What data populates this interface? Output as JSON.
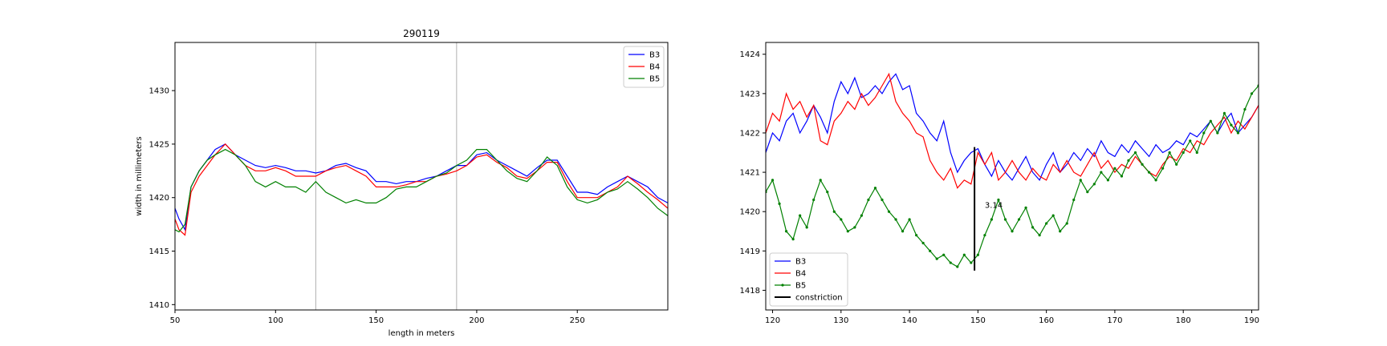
{
  "chart_data": [
    {
      "type": "line",
      "title": "290119",
      "xlabel": "length in meters",
      "ylabel": "width in millimeters",
      "xlim": [
        50,
        295
      ],
      "ylim": [
        1409.5,
        1434.5
      ],
      "xticks": [
        50,
        100,
        150,
        200,
        250
      ],
      "yticks": [
        1410,
        1415,
        1420,
        1425,
        1430
      ],
      "legend": "top-right",
      "vertical_lines": [
        120,
        190
      ],
      "series": [
        {
          "name": "B3",
          "color": "#0000ff",
          "x": [
            50,
            52,
            55,
            58,
            62,
            66,
            70,
            75,
            80,
            85,
            90,
            95,
            100,
            105,
            110,
            115,
            120,
            125,
            130,
            135,
            140,
            145,
            150,
            155,
            160,
            165,
            170,
            175,
            180,
            185,
            190,
            195,
            200,
            205,
            210,
            215,
            220,
            225,
            230,
            235,
            240,
            245,
            250,
            255,
            260,
            265,
            270,
            275,
            280,
            285,
            290,
            295
          ],
          "y": [
            1419.0,
            1418.0,
            1417.0,
            1421.0,
            1422.5,
            1423.5,
            1424.5,
            1425.0,
            1424.0,
            1423.5,
            1423.0,
            1422.8,
            1423.0,
            1422.8,
            1422.5,
            1422.5,
            1422.3,
            1422.5,
            1423.0,
            1423.2,
            1422.8,
            1422.5,
            1421.5,
            1421.5,
            1421.3,
            1421.5,
            1421.5,
            1421.8,
            1422.0,
            1422.5,
            1423.0,
            1423.0,
            1424.0,
            1424.2,
            1423.5,
            1423.0,
            1422.5,
            1422.0,
            1422.8,
            1423.5,
            1423.5,
            1422.0,
            1420.5,
            1420.5,
            1420.3,
            1421.0,
            1421.5,
            1422.0,
            1421.5,
            1421.0,
            1420.0,
            1419.5
          ]
        },
        {
          "name": "B4",
          "color": "#ff0000",
          "x": [
            50,
            52,
            55,
            58,
            62,
            66,
            70,
            75,
            80,
            85,
            90,
            95,
            100,
            105,
            110,
            115,
            120,
            125,
            130,
            135,
            140,
            145,
            150,
            155,
            160,
            165,
            170,
            175,
            180,
            185,
            190,
            195,
            200,
            205,
            210,
            215,
            220,
            225,
            230,
            235,
            240,
            245,
            250,
            255,
            260,
            265,
            270,
            275,
            280,
            285,
            290,
            295
          ],
          "y": [
            1418.0,
            1417.0,
            1416.5,
            1420.5,
            1422.0,
            1423.0,
            1424.0,
            1425.0,
            1424.0,
            1423.0,
            1422.5,
            1422.5,
            1422.8,
            1422.5,
            1422.0,
            1422.0,
            1422.0,
            1422.5,
            1422.8,
            1423.0,
            1422.5,
            1422.0,
            1421.0,
            1421.0,
            1421.0,
            1421.2,
            1421.5,
            1421.5,
            1422.0,
            1422.2,
            1422.5,
            1423.0,
            1423.8,
            1424.0,
            1423.3,
            1422.8,
            1422.0,
            1421.8,
            1422.5,
            1423.3,
            1423.3,
            1421.5,
            1420.0,
            1420.0,
            1420.0,
            1420.5,
            1421.0,
            1422.0,
            1421.3,
            1420.5,
            1419.8,
            1419.0
          ]
        },
        {
          "name": "B5",
          "color": "#008000",
          "x": [
            50,
            52,
            55,
            58,
            62,
            66,
            70,
            75,
            80,
            85,
            90,
            95,
            100,
            105,
            110,
            115,
            120,
            125,
            130,
            135,
            140,
            145,
            150,
            155,
            160,
            165,
            170,
            175,
            180,
            185,
            190,
            195,
            200,
            205,
            210,
            215,
            220,
            225,
            230,
            235,
            240,
            245,
            250,
            255,
            260,
            265,
            270,
            275,
            280,
            285,
            290,
            295
          ],
          "y": [
            1417.0,
            1416.8,
            1417.5,
            1421.0,
            1422.5,
            1423.5,
            1424.0,
            1424.5,
            1424.0,
            1423.0,
            1421.5,
            1421.0,
            1421.5,
            1421.0,
            1421.0,
            1420.5,
            1421.5,
            1420.5,
            1420.0,
            1419.5,
            1419.8,
            1419.5,
            1419.5,
            1420.0,
            1420.8,
            1421.0,
            1421.0,
            1421.5,
            1422.0,
            1422.3,
            1423.0,
            1423.5,
            1424.5,
            1424.5,
            1423.5,
            1422.5,
            1421.8,
            1421.5,
            1422.5,
            1423.8,
            1423.0,
            1421.0,
            1419.8,
            1419.5,
            1419.8,
            1420.5,
            1420.8,
            1421.5,
            1420.8,
            1420.0,
            1419.0,
            1418.3
          ]
        }
      ]
    },
    {
      "type": "line",
      "title": "",
      "xlim": [
        119,
        191
      ],
      "ylim": [
        1417.5,
        1424.3
      ],
      "xticks": [
        120,
        130,
        140,
        150,
        160,
        170,
        180,
        190
      ],
      "yticks": [
        1418,
        1419,
        1420,
        1421,
        1422,
        1423,
        1424
      ],
      "legend": "bottom-left",
      "annotation": {
        "text": "3.14",
        "x": 151,
        "y": 1420.1
      },
      "series": [
        {
          "name": "B3",
          "color": "#0000ff",
          "marker": "none",
          "x": [
            119,
            120,
            121,
            122,
            123,
            124,
            125,
            126,
            127,
            128,
            129,
            130,
            131,
            132,
            133,
            134,
            135,
            136,
            137,
            138,
            139,
            140,
            141,
            142,
            143,
            144,
            145,
            146,
            147,
            148,
            149,
            150,
            151,
            152,
            153,
            154,
            155,
            156,
            157,
            158,
            159,
            160,
            161,
            162,
            163,
            164,
            165,
            166,
            167,
            168,
            169,
            170,
            171,
            172,
            173,
            174,
            175,
            176,
            177,
            178,
            179,
            180,
            181,
            182,
            183,
            184,
            185,
            186,
            187,
            188,
            189,
            190,
            191
          ],
          "y": [
            1421.5,
            1422.0,
            1421.8,
            1422.3,
            1422.5,
            1422.0,
            1422.3,
            1422.7,
            1422.4,
            1422.0,
            1422.8,
            1423.3,
            1423.0,
            1423.4,
            1422.9,
            1423.0,
            1423.2,
            1423.0,
            1423.3,
            1423.5,
            1423.1,
            1423.2,
            1422.5,
            1422.3,
            1422.0,
            1421.8,
            1422.3,
            1421.5,
            1421.0,
            1421.3,
            1421.5,
            1421.6,
            1421.2,
            1420.9,
            1421.3,
            1421.0,
            1420.8,
            1421.1,
            1421.4,
            1421.0,
            1420.8,
            1421.2,
            1421.5,
            1421.0,
            1421.2,
            1421.5,
            1421.3,
            1421.6,
            1421.4,
            1421.8,
            1421.5,
            1421.4,
            1421.7,
            1421.5,
            1421.8,
            1421.6,
            1421.4,
            1421.7,
            1421.5,
            1421.6,
            1421.8,
            1421.7,
            1422.0,
            1421.9,
            1422.1,
            1422.3,
            1422.0,
            1422.3,
            1422.5,
            1422.0,
            1422.2,
            1422.4,
            1422.7
          ]
        },
        {
          "name": "B4",
          "color": "#ff0000",
          "marker": "none",
          "x": [
            119,
            120,
            121,
            122,
            123,
            124,
            125,
            126,
            127,
            128,
            129,
            130,
            131,
            132,
            133,
            134,
            135,
            136,
            137,
            138,
            139,
            140,
            141,
            142,
            143,
            144,
            145,
            146,
            147,
            148,
            149,
            150,
            151,
            152,
            153,
            154,
            155,
            156,
            157,
            158,
            159,
            160,
            161,
            162,
            163,
            164,
            165,
            166,
            167,
            168,
            169,
            170,
            171,
            172,
            173,
            174,
            175,
            176,
            177,
            178,
            179,
            180,
            181,
            182,
            183,
            184,
            185,
            186,
            187,
            188,
            189,
            190,
            191
          ],
          "y": [
            1422.0,
            1422.5,
            1422.3,
            1423.0,
            1422.6,
            1422.8,
            1422.4,
            1422.7,
            1421.8,
            1421.7,
            1422.3,
            1422.5,
            1422.8,
            1422.6,
            1423.0,
            1422.7,
            1422.9,
            1423.2,
            1423.5,
            1422.8,
            1422.5,
            1422.3,
            1422.0,
            1421.9,
            1421.3,
            1421.0,
            1420.8,
            1421.1,
            1420.6,
            1420.8,
            1420.7,
            1421.5,
            1421.2,
            1421.5,
            1420.8,
            1421.0,
            1421.3,
            1421.0,
            1420.8,
            1421.1,
            1420.9,
            1420.8,
            1421.2,
            1421.0,
            1421.3,
            1421.0,
            1420.9,
            1421.2,
            1421.5,
            1421.1,
            1421.3,
            1421.0,
            1421.2,
            1421.1,
            1421.4,
            1421.2,
            1421.0,
            1420.9,
            1421.2,
            1421.4,
            1421.3,
            1421.6,
            1421.5,
            1421.8,
            1421.7,
            1422.0,
            1422.2,
            1422.4,
            1422.0,
            1422.3,
            1422.1,
            1422.4,
            1422.7
          ]
        },
        {
          "name": "B5",
          "color": "#008000",
          "marker": "dot",
          "x": [
            119,
            120,
            121,
            122,
            123,
            124,
            125,
            126,
            127,
            128,
            129,
            130,
            131,
            132,
            133,
            134,
            135,
            136,
            137,
            138,
            139,
            140,
            141,
            142,
            143,
            144,
            145,
            146,
            147,
            148,
            149,
            150,
            151,
            152,
            153,
            154,
            155,
            156,
            157,
            158,
            159,
            160,
            161,
            162,
            163,
            164,
            165,
            166,
            167,
            168,
            169,
            170,
            171,
            172,
            173,
            174,
            175,
            176,
            177,
            178,
            179,
            180,
            181,
            182,
            183,
            184,
            185,
            186,
            187,
            188,
            189,
            190,
            191
          ],
          "y": [
            1420.5,
            1420.8,
            1420.2,
            1419.5,
            1419.3,
            1419.9,
            1419.6,
            1420.3,
            1420.8,
            1420.5,
            1420.0,
            1419.8,
            1419.5,
            1419.6,
            1419.9,
            1420.3,
            1420.6,
            1420.3,
            1420.0,
            1419.8,
            1419.5,
            1419.8,
            1419.4,
            1419.2,
            1419.0,
            1418.8,
            1418.9,
            1418.7,
            1418.6,
            1418.9,
            1418.7,
            1418.9,
            1419.4,
            1419.8,
            1420.3,
            1419.8,
            1419.5,
            1419.8,
            1420.1,
            1419.6,
            1419.4,
            1419.7,
            1419.9,
            1419.5,
            1419.7,
            1420.3,
            1420.8,
            1420.5,
            1420.7,
            1421.0,
            1420.8,
            1421.1,
            1420.9,
            1421.3,
            1421.5,
            1421.2,
            1421.0,
            1420.8,
            1421.1,
            1421.5,
            1421.2,
            1421.5,
            1421.8,
            1421.5,
            1422.0,
            1422.3,
            1422.0,
            1422.5,
            1422.2,
            1422.0,
            1422.6,
            1423.0,
            1423.2
          ]
        },
        {
          "name": "constriction",
          "color": "#000000",
          "marker": "segment",
          "x": [
            149.5,
            149.5
          ],
          "y": [
            1418.5,
            1421.64
          ]
        }
      ]
    }
  ]
}
